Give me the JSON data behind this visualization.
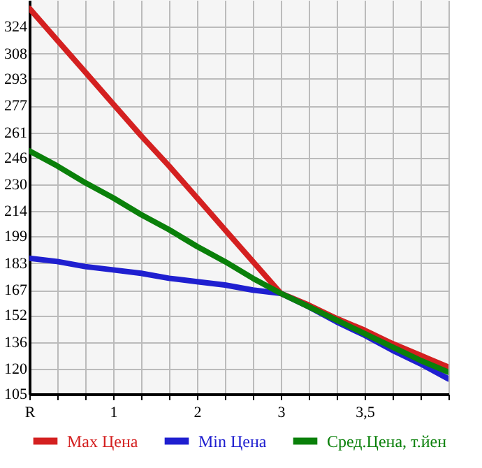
{
  "chart_data": {
    "type": "line",
    "categories": [
      "R",
      null,
      null,
      "1",
      null,
      null,
      "2",
      null,
      null,
      "3",
      null,
      null,
      "3,5",
      null,
      null,
      null
    ],
    "ylim": [
      105,
      340
    ],
    "yticks": [
      105,
      120,
      136,
      152,
      167,
      183,
      199,
      214,
      230,
      246,
      261,
      277,
      293,
      308,
      324
    ],
    "series": [
      {
        "name": "Max Цена",
        "color": "#d42020",
        "values": [
          335,
          316,
          297,
          278,
          259,
          241,
          222,
          203,
          184,
          165,
          158,
          150,
          143,
          135,
          128,
          121
        ]
      },
      {
        "name": "Min Цена",
        "color": "#1f1fd0",
        "values": [
          186,
          184,
          181,
          179,
          177,
          174,
          172,
          170,
          167,
          165,
          157,
          148,
          140,
          131,
          123,
          114
        ]
      },
      {
        "name": "Сред.Цена, т.йен",
        "color": "#0a800a",
        "values": [
          250,
          241,
          231,
          222,
          212,
          203,
          193,
          184,
          174,
          165,
          157,
          149,
          141,
          133,
          125,
          118
        ]
      }
    ],
    "grid": true,
    "legend": "bottom",
    "marker": "none",
    "line_style": "solid"
  }
}
